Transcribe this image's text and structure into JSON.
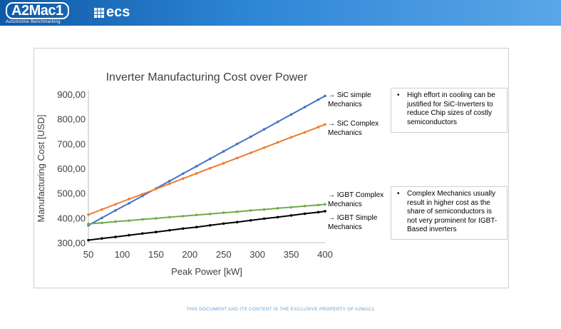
{
  "header": {
    "logo_main": "A2Mac1",
    "logo_tagline": "Automotive Benchmarking",
    "logo_secondary": "ecs",
    "background_color": "#1f6fc1"
  },
  "notes": [
    {
      "bullet": "•",
      "text": "High effort in cooling can be justified for SiC-Inverters to reduce Chip sizes of costly semiconductors"
    },
    {
      "bullet": "•",
      "text": "Complex Mechanics usually result in higher cost as the share of semiconductors is not very prominent for IGBT-Based inverters"
    }
  ],
  "footer": {
    "text": "THIS DOCUMENT AND ITS CONTENT IS THE EXCLUSIVE PROPERTY OF A2MAC1"
  },
  "chart_data": {
    "type": "line",
    "title": "Inverter Manufacturing Cost over Power",
    "xlabel": "Peak Power [kW]",
    "ylabel": "Manufacturing Cost [USD]",
    "xlim": [
      50,
      400
    ],
    "ylim": [
      300,
      900
    ],
    "xticks": [
      "50",
      "100",
      "150",
      "200",
      "250",
      "300",
      "350",
      "400"
    ],
    "yticks": [
      "300,00",
      "400,00",
      "500,00",
      "600,00",
      "700,00",
      "800,00",
      "900,00"
    ],
    "grid": false,
    "legend": "right",
    "x": [
      50,
      70,
      90,
      110,
      130,
      150,
      170,
      190,
      210,
      230,
      250,
      270,
      290,
      310,
      330,
      350,
      370,
      390,
      400
    ],
    "series": [
      {
        "name": "→ SiC simple Mechanics",
        "color": "#4472c4",
        "values": [
          370,
          400,
          430,
          459,
          489,
          519,
          549,
          579,
          609,
          639,
          669,
          699,
          728,
          758,
          788,
          818,
          848,
          878,
          893
        ]
      },
      {
        "name": "→ SiC Complex Mechanics",
        "color": "#ed7d31",
        "values": [
          413,
          434,
          455,
          476,
          496,
          517,
          538,
          559,
          580,
          601,
          621,
          642,
          663,
          684,
          705,
          726,
          746,
          767,
          778
        ]
      },
      {
        "name": "→ IGBT Complex Mechanics",
        "color": "#70ad47",
        "values": [
          376,
          380,
          385,
          389,
          394,
          398,
          403,
          407,
          412,
          416,
          421,
          425,
          430,
          434,
          439,
          443,
          448,
          452,
          455
        ]
      },
      {
        "name": "→ IGBT Simple Mechanics",
        "color": "#000000",
        "values": [
          310,
          317,
          323,
          330,
          337,
          343,
          350,
          357,
          363,
          370,
          377,
          383,
          390,
          397,
          403,
          410,
          417,
          423,
          427
        ]
      }
    ]
  }
}
